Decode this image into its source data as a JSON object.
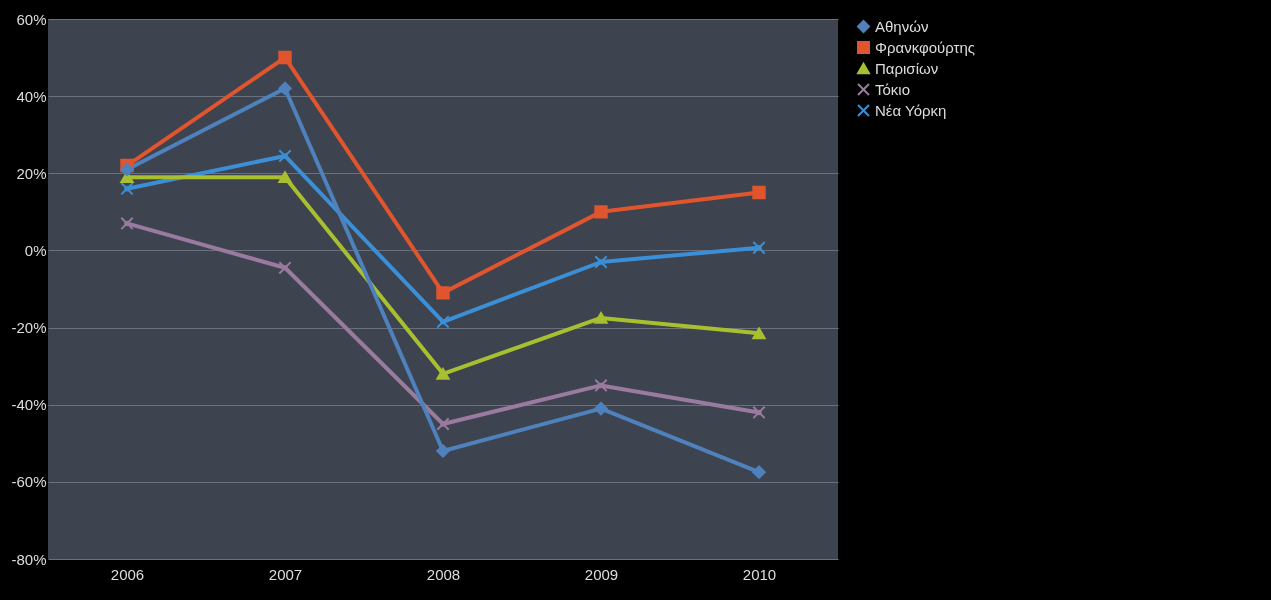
{
  "chart_data": {
    "type": "line",
    "categories": [
      "2006",
      "2007",
      "2008",
      "2009",
      "2010"
    ],
    "series": [
      {
        "name": "Αθηνών",
        "color": "#4f81bd",
        "marker": "diamond",
        "values": [
          21,
          42,
          -52,
          -41,
          -57.5
        ]
      },
      {
        "name": "Φρανκφούρτης",
        "color": "#e0552e",
        "marker": "square",
        "values": [
          22,
          50,
          -11,
          10,
          15
        ]
      },
      {
        "name": "Παρισίων",
        "color": "#a8c030",
        "marker": "triangle",
        "values": [
          19,
          19,
          -32,
          -17.5,
          -21.5
        ]
      },
      {
        "name": "Τόκιο",
        "color": "#9a7a9e",
        "marker": "cross",
        "values": [
          7,
          -4.5,
          -45,
          -35,
          -42
        ]
      },
      {
        "name": "Νέα Υόρκη",
        "color": "#3b8fd6",
        "marker": "cross",
        "values": [
          16,
          24.5,
          -18.5,
          -3,
          0.7
        ]
      }
    ],
    "ylim": [
      -80,
      60
    ],
    "yticks": [
      {
        "value": -80,
        "label": "-80%"
      },
      {
        "value": -60,
        "label": "-60%"
      },
      {
        "value": -40,
        "label": "-40%"
      },
      {
        "value": -20,
        "label": "-20%"
      },
      {
        "value": 0,
        "label": "0%"
      },
      {
        "value": 20,
        "label": "20%"
      },
      {
        "value": 40,
        "label": "40%"
      },
      {
        "value": 60,
        "label": "60%"
      }
    ],
    "grid": "y",
    "legend": "right",
    "line_style": "solid"
  }
}
